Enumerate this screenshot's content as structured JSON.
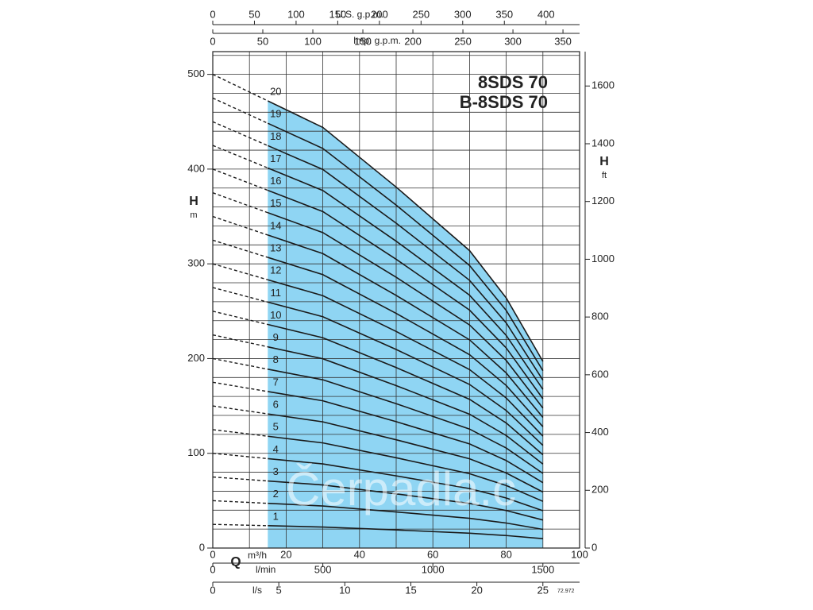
{
  "chart_data": {
    "type": "line",
    "title": "8SDS 70",
    "subtitle": "B-8SDS 70",
    "x_label": "Q",
    "x_unit": "m³/h",
    "y_label": "H",
    "y_unit": "m",
    "y2_label": "H",
    "y2_unit": "ft",
    "code": "72.972",
    "watermark": "Čerpadla.c",
    "x": [
      0,
      15,
      30,
      50,
      70,
      80,
      90
    ],
    "extrapolated_until": 15,
    "area_color": "#8fd5f3",
    "xlim": [
      0,
      100
    ],
    "xticks": [
      0,
      20,
      40,
      60,
      80,
      100
    ],
    "xgrid": [
      0,
      10,
      20,
      30,
      40,
      50,
      60,
      70,
      80,
      90,
      100
    ],
    "ylim": [
      0,
      524
    ],
    "yticks": [
      0,
      100,
      200,
      300,
      400,
      500
    ],
    "ygrid": [
      20,
      40,
      60,
      80,
      100,
      120,
      140,
      160,
      180,
      200,
      220,
      240,
      260,
      280,
      300,
      320,
      340,
      360,
      380,
      400,
      420,
      440,
      460,
      480,
      500,
      520
    ],
    "y2lim": [
      0,
      1719
    ],
    "y2ticks": [
      0,
      200,
      400,
      600,
      800,
      1000,
      1200,
      1400,
      1600
    ],
    "x_axes": [
      {
        "label": "U.S. g.p.m.",
        "lim": [
          0,
          440.3
        ],
        "ticks": [
          0,
          50,
          100,
          150,
          200,
          250,
          300,
          350,
          400
        ],
        "position": "top"
      },
      {
        "label": "Imp. g.p.m.",
        "lim": [
          0,
          366.6
        ],
        "ticks": [
          0,
          50,
          100,
          150,
          200,
          250,
          300,
          350
        ],
        "position": "top"
      },
      {
        "label": "l/min",
        "lim": [
          0,
          1666.7
        ],
        "ticks": [
          0,
          500,
          1000,
          1500
        ],
        "position": "bottom"
      },
      {
        "label": "l/s",
        "lim": [
          0,
          27.78
        ],
        "ticks": [
          0,
          5,
          10,
          15,
          20,
          25
        ],
        "position": "bottom"
      }
    ],
    "series": [
      {
        "name": "1",
        "color": "#1a1a1a",
        "values": [
          25,
          23.6,
          22.2,
          19.1,
          15.7,
          13.2,
          9.9
        ]
      },
      {
        "name": "2",
        "color": "#1a1a1a",
        "values": [
          50,
          47.2,
          44.4,
          38.1,
          31.4,
          26.4,
          19.7
        ]
      },
      {
        "name": "3",
        "color": "#1a1a1a",
        "values": [
          75,
          70.8,
          66.6,
          57.2,
          47.1,
          39.6,
          29.6
        ]
      },
      {
        "name": "4",
        "color": "#1a1a1a",
        "values": [
          100,
          94.4,
          88.8,
          76.2,
          62.8,
          52.8,
          39.4
        ]
      },
      {
        "name": "5",
        "color": "#1a1a1a",
        "values": [
          125,
          118,
          111,
          95.3,
          78.5,
          66,
          49.3
        ]
      },
      {
        "name": "6",
        "color": "#1a1a1a",
        "values": [
          150,
          141.6,
          133.2,
          114.3,
          94.2,
          79.2,
          59.1
        ]
      },
      {
        "name": "7",
        "color": "#1a1a1a",
        "values": [
          175,
          165.2,
          155.4,
          133.4,
          109.9,
          92.4,
          69
        ]
      },
      {
        "name": "8",
        "color": "#1a1a1a",
        "values": [
          200,
          188.8,
          177.6,
          152.4,
          125.6,
          105.6,
          78.8
        ]
      },
      {
        "name": "9",
        "color": "#1a1a1a",
        "values": [
          225,
          212.4,
          199.8,
          171.5,
          141.3,
          118.8,
          88.7
        ]
      },
      {
        "name": "10",
        "color": "#1a1a1a",
        "values": [
          250,
          236,
          222,
          190.5,
          157,
          132,
          98.5
        ]
      },
      {
        "name": "11",
        "color": "#1a1a1a",
        "values": [
          275,
          259.6,
          244.2,
          209.6,
          172.7,
          145.2,
          108.4
        ]
      },
      {
        "name": "12",
        "color": "#1a1a1a",
        "values": [
          300,
          283.2,
          266.4,
          228.6,
          188.4,
          158.4,
          118.2
        ]
      },
      {
        "name": "13",
        "color": "#1a1a1a",
        "values": [
          325,
          306.8,
          288.6,
          247.7,
          204.1,
          171.6,
          128.1
        ]
      },
      {
        "name": "14",
        "color": "#1a1a1a",
        "values": [
          350,
          330.4,
          310.8,
          266.7,
          219.8,
          184.8,
          137.9
        ]
      },
      {
        "name": "15",
        "color": "#1a1a1a",
        "values": [
          375,
          354,
          333,
          285.8,
          235.5,
          198,
          147.8
        ]
      },
      {
        "name": "16",
        "color": "#1a1a1a",
        "values": [
          400,
          377.6,
          355.2,
          304.8,
          251.2,
          211.2,
          157.6
        ]
      },
      {
        "name": "17",
        "color": "#1a1a1a",
        "values": [
          425,
          401.2,
          377.4,
          323.9,
          266.9,
          224.4,
          167.5
        ]
      },
      {
        "name": "18",
        "color": "#1a1a1a",
        "values": [
          450,
          424.8,
          399.6,
          342.9,
          282.6,
          237.6,
          177.3
        ]
      },
      {
        "name": "19",
        "color": "#1a1a1a",
        "values": [
          475,
          448.4,
          421.8,
          362,
          298.3,
          250.8,
          187.2
        ]
      },
      {
        "name": "20",
        "color": "#1a1a1a",
        "values": [
          500,
          472,
          444,
          381,
          314,
          264,
          197
        ]
      }
    ]
  }
}
